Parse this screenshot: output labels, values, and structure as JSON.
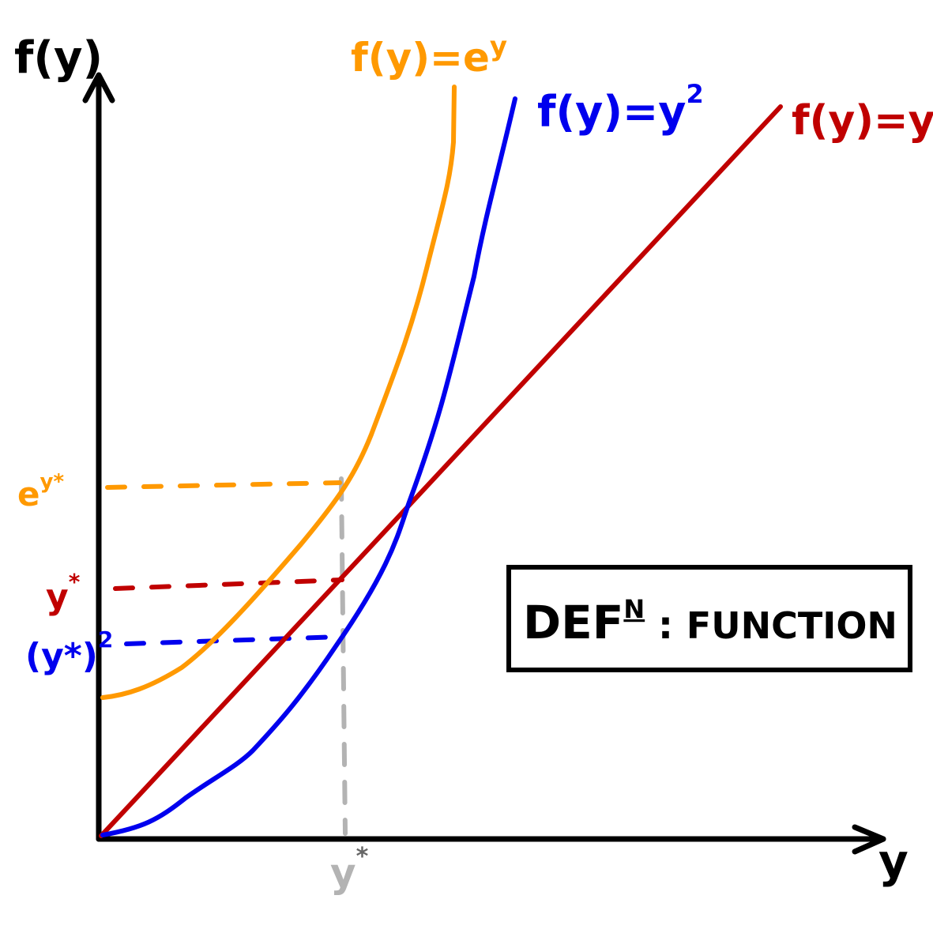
{
  "axes": {
    "x_label": "y",
    "y_label": "f(y)"
  },
  "curves": [
    {
      "key": "exp",
      "label_base": "f(y)=e",
      "label_sup": "y",
      "color": "#ff9900"
    },
    {
      "key": "square",
      "label_base": "f(y)=y",
      "label_sup": "2",
      "color": "#0000ee"
    },
    {
      "key": "identity",
      "label_base": "f(y)=y",
      "label_sup": "",
      "color": "#c00000"
    }
  ],
  "point_labels": {
    "x_star": {
      "base": "y",
      "sup": "*",
      "color": "#b3b3b3"
    },
    "exp_value": {
      "base": "e",
      "sup": "y*",
      "color": "#ff9900"
    },
    "identity_value": {
      "base": "y",
      "sup": "*",
      "color": "#c00000"
    },
    "square_value": {
      "base": "(y*)",
      "sup": "2",
      "color": "#0000ee"
    }
  },
  "definition_box": {
    "prefix": "DEF",
    "sup": "N",
    "separator": " : ",
    "word": "FUNCTION"
  }
}
